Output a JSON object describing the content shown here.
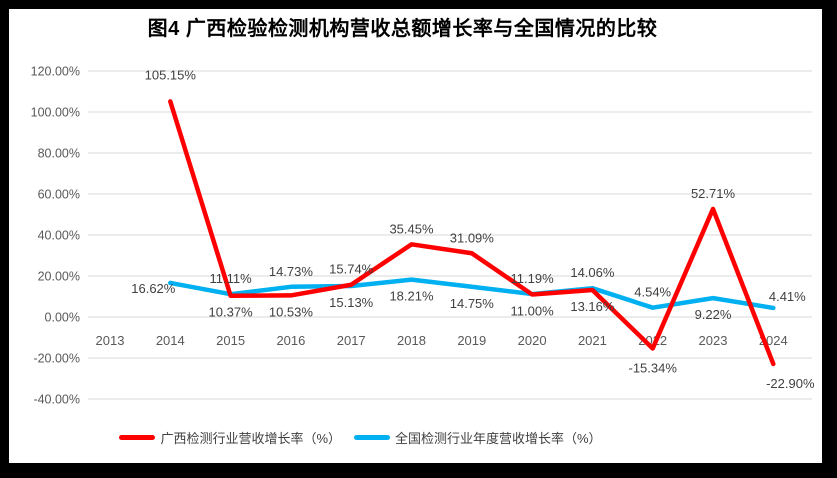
{
  "frame": {
    "background": "#000000",
    "panel_background": "#FFFFFF"
  },
  "chart_data": {
    "type": "line",
    "title": "图4 广西检验检测机构营收总额增长率与全国情况的比较",
    "categories": [
      "2013",
      "2014",
      "2015",
      "2016",
      "2017",
      "2018",
      "2019",
      "2020",
      "2021",
      "2022",
      "2023",
      "2024"
    ],
    "y_axis": {
      "tick_labels": [
        "120.00%",
        "100.00%",
        "80.00%",
        "60.00%",
        "40.00%",
        "20.00%",
        "0.00%",
        "-20.00%",
        "-40.00%"
      ],
      "tick_values": [
        120,
        100,
        80,
        60,
        40,
        20,
        0,
        -20,
        -40
      ],
      "min": -40,
      "max": 120,
      "unit": "percent"
    },
    "grid": true,
    "legend_position": "bottom",
    "colors": {
      "grid": "#D9D9D9",
      "axis_text": "#595959",
      "data_label_text": "#404040",
      "title_text": "#000000"
    },
    "series": [
      {
        "id": "guangxi",
        "name": "广西检测行业营收增长率（%）",
        "color": "#FF0000",
        "x": [
          "2014",
          "2015",
          "2016",
          "2017",
          "2018",
          "2019",
          "2020",
          "2021",
          "2022",
          "2023",
          "2024"
        ],
        "values": [
          105.15,
          10.37,
          10.53,
          15.74,
          35.45,
          31.09,
          11.0,
          13.16,
          -15.34,
          52.71,
          -22.9
        ],
        "labels": [
          "105.15%",
          "10.37%",
          "10.53%",
          "15.74%",
          "35.45%",
          "31.09%",
          "11.00%",
          "13.16%",
          "-15.34%",
          "52.71%",
          "-22.90%"
        ],
        "label_pos": [
          "above-far",
          "below",
          "below",
          "above",
          "above",
          "above",
          "below",
          "below",
          "below-far",
          "above",
          "below-right"
        ]
      },
      {
        "id": "national",
        "name": "全国检测行业年度营收增长率（%）",
        "color": "#00B0F0",
        "x": [
          "2014",
          "2015",
          "2016",
          "2017",
          "2018",
          "2019",
          "2020",
          "2021",
          "2022",
          "2023",
          "2024"
        ],
        "values": [
          16.62,
          11.11,
          14.73,
          15.13,
          18.21,
          14.75,
          11.19,
          14.06,
          4.54,
          9.22,
          4.41
        ],
        "labels": [
          "16.62%",
          "11.11%",
          "14.73%",
          "15.13%",
          "18.21%",
          "14.75%",
          "11.19%",
          "14.06%",
          "4.54%",
          "9.22%",
          "4.41%"
        ],
        "label_pos": [
          "below-left",
          "above",
          "above",
          "below",
          "below",
          "below",
          "above",
          "above",
          "above",
          "below",
          "right-above"
        ]
      }
    ]
  }
}
